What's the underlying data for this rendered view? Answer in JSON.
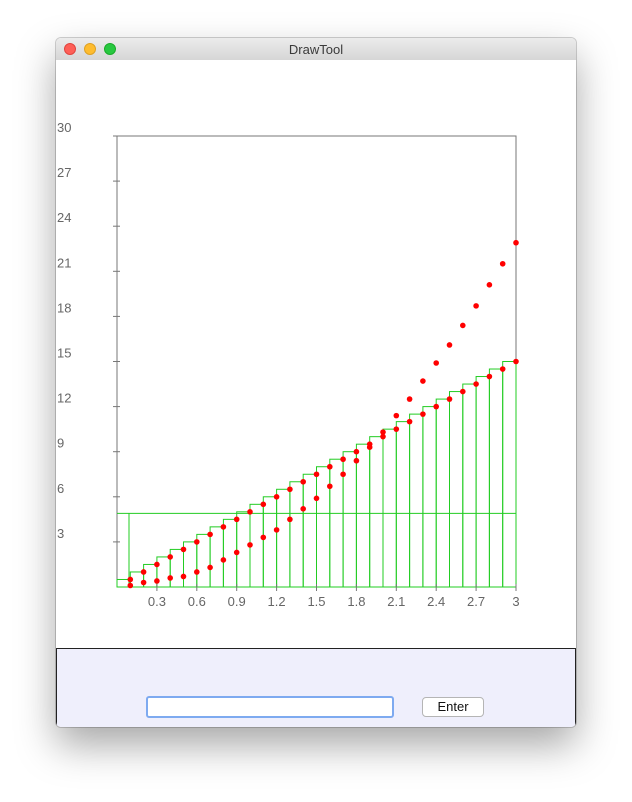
{
  "window": {
    "title": "DrawTool"
  },
  "controls": {
    "input_value": "",
    "enter_label": "Enter"
  },
  "chart_data": {
    "type": "scatter",
    "x_ticks": [
      "0.3",
      "0.6",
      "0.9",
      "1.2",
      "1.5",
      "1.8",
      "2.1",
      "2.4",
      "2.7",
      "3"
    ],
    "y_ticks": [
      "3",
      "6",
      "9",
      "12",
      "15",
      "18",
      "21",
      "24",
      "27",
      "30"
    ],
    "xlim": [
      0,
      3
    ],
    "ylim": [
      0,
      30
    ],
    "grid": false,
    "colors": {
      "points": "#ff0000",
      "bars": "#22cc22",
      "axes": "#777777"
    },
    "series": [
      {
        "x": [
          0.1,
          0.2,
          0.3,
          0.4,
          0.5,
          0.6,
          0.7,
          0.8,
          0.9,
          1.0,
          1.1,
          1.2,
          1.3,
          1.4,
          1.5,
          1.6,
          1.7,
          1.8,
          1.9,
          2.0,
          2.1,
          2.2,
          2.3,
          2.4,
          2.5,
          2.6,
          2.7,
          2.8,
          2.9,
          3.0
        ],
        "y": [
          0.1,
          0.3,
          0.4,
          0.6,
          0.7,
          1.0,
          1.3,
          1.8,
          2.3,
          2.8,
          3.3,
          3.8,
          4.5,
          5.2,
          5.9,
          6.7,
          7.5,
          8.4,
          9.3,
          10.3,
          11.4,
          12.5,
          13.7,
          14.9,
          16.1,
          17.4,
          18.7,
          20.1,
          21.5,
          22.9
        ]
      },
      {
        "x": [
          0.1,
          0.2,
          0.3,
          0.4,
          0.5,
          0.6,
          0.7,
          0.8,
          0.9,
          1.0,
          1.1,
          1.2,
          1.3,
          1.4,
          1.5,
          1.6,
          1.7,
          1.8,
          1.9,
          2.0,
          2.1,
          2.2,
          2.3,
          2.4,
          2.5,
          2.6,
          2.7,
          2.8,
          2.9,
          3.0
        ],
        "y": [
          0.5,
          1.0,
          1.5,
          2.0,
          2.5,
          3.0,
          3.5,
          4.0,
          4.5,
          5.0,
          5.5,
          6.0,
          6.5,
          7.0,
          7.5,
          8.0,
          8.5,
          9.0,
          9.5,
          10.0,
          10.5,
          11.0,
          11.5,
          12.0,
          12.5,
          13.0,
          13.5,
          14.0,
          14.5,
          15.0
        ]
      }
    ],
    "bars": {
      "x": [
        0.1,
        0.2,
        0.3,
        0.4,
        0.5,
        0.6,
        0.7,
        0.8,
        0.9,
        1.0,
        1.1,
        1.2,
        1.3,
        1.4,
        1.5,
        1.6,
        1.7,
        1.8,
        1.9,
        2.0,
        2.1,
        2.2,
        2.3,
        2.4,
        2.5,
        2.6,
        2.7,
        2.8,
        2.9,
        3.0
      ],
      "y": [
        0.5,
        1.0,
        1.5,
        2.0,
        2.5,
        3.0,
        3.5,
        4.0,
        4.5,
        5.0,
        5.5,
        6.0,
        6.5,
        7.0,
        7.5,
        8.0,
        8.5,
        9.0,
        9.5,
        10.0,
        10.5,
        11.0,
        11.5,
        12.0,
        12.5,
        13.0,
        13.5,
        14.0,
        14.5,
        15.0
      ]
    },
    "threshold": 4.9
  }
}
